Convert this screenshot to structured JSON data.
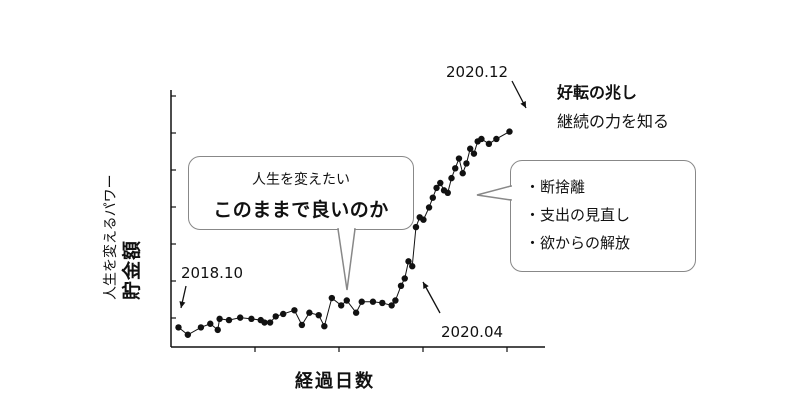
{
  "chart_data": {
    "type": "line",
    "title": "",
    "xlabel": "経過日数",
    "ylabel_sub": "人生を変えるパワー",
    "ylabel": "貯金額",
    "grid": false,
    "annotations": {
      "start_label": "2018.10",
      "mid_label": "2020.04",
      "end_label": "2020.12"
    },
    "series": [
      {
        "values": [
          [
            0.02,
            0.03
          ],
          [
            0.045,
            0.0
          ],
          [
            0.08,
            0.03
          ],
          [
            0.105,
            0.045
          ],
          [
            0.125,
            0.02
          ],
          [
            0.13,
            0.065
          ],
          [
            0.155,
            0.06
          ],
          [
            0.185,
            0.07
          ],
          [
            0.215,
            0.065
          ],
          [
            0.24,
            0.06
          ],
          [
            0.25,
            0.05
          ],
          [
            0.265,
            0.05
          ],
          [
            0.28,
            0.075
          ],
          [
            0.3,
            0.085
          ],
          [
            0.33,
            0.1
          ],
          [
            0.35,
            0.04
          ],
          [
            0.37,
            0.09
          ],
          [
            0.395,
            0.08
          ],
          [
            0.41,
            0.035
          ],
          [
            0.43,
            0.15
          ],
          [
            0.455,
            0.12
          ],
          [
            0.47,
            0.14
          ],
          [
            0.495,
            0.09
          ],
          [
            0.51,
            0.135
          ],
          [
            0.54,
            0.135
          ],
          [
            0.565,
            0.13
          ],
          [
            0.59,
            0.12
          ],
          [
            0.6,
            0.14
          ],
          [
            0.615,
            0.2
          ],
          [
            0.625,
            0.23
          ],
          [
            0.635,
            0.3
          ],
          [
            0.645,
            0.28
          ],
          [
            0.655,
            0.44
          ],
          [
            0.665,
            0.48
          ],
          [
            0.675,
            0.47
          ],
          [
            0.69,
            0.52
          ],
          [
            0.7,
            0.56
          ],
          [
            0.71,
            0.6
          ],
          [
            0.72,
            0.62
          ],
          [
            0.73,
            0.59
          ],
          [
            0.74,
            0.58
          ],
          [
            0.75,
            0.64
          ],
          [
            0.76,
            0.68
          ],
          [
            0.77,
            0.72
          ],
          [
            0.78,
            0.66
          ],
          [
            0.79,
            0.7
          ],
          [
            0.8,
            0.76
          ],
          [
            0.81,
            0.74
          ],
          [
            0.82,
            0.79
          ],
          [
            0.83,
            0.8
          ],
          [
            0.85,
            0.78
          ],
          [
            0.87,
            0.8
          ],
          [
            0.905,
            0.83
          ]
        ]
      }
    ],
    "xlim": [
      0,
      1
    ],
    "ylim": [
      -0.05,
      1.0
    ]
  },
  "callout_top": {
    "sub": "人生を変えたい",
    "main": "このままで良いのか"
  },
  "callout_right": {
    "items": [
      "・断捨離",
      "・支出の見直し",
      "・欲からの解放"
    ]
  },
  "side_note": {
    "title": "好転の兆し",
    "subtitle": "継続の力を知る"
  },
  "colors": {
    "line": "#111111",
    "axis": "#111111",
    "callout_border": "#888888"
  }
}
